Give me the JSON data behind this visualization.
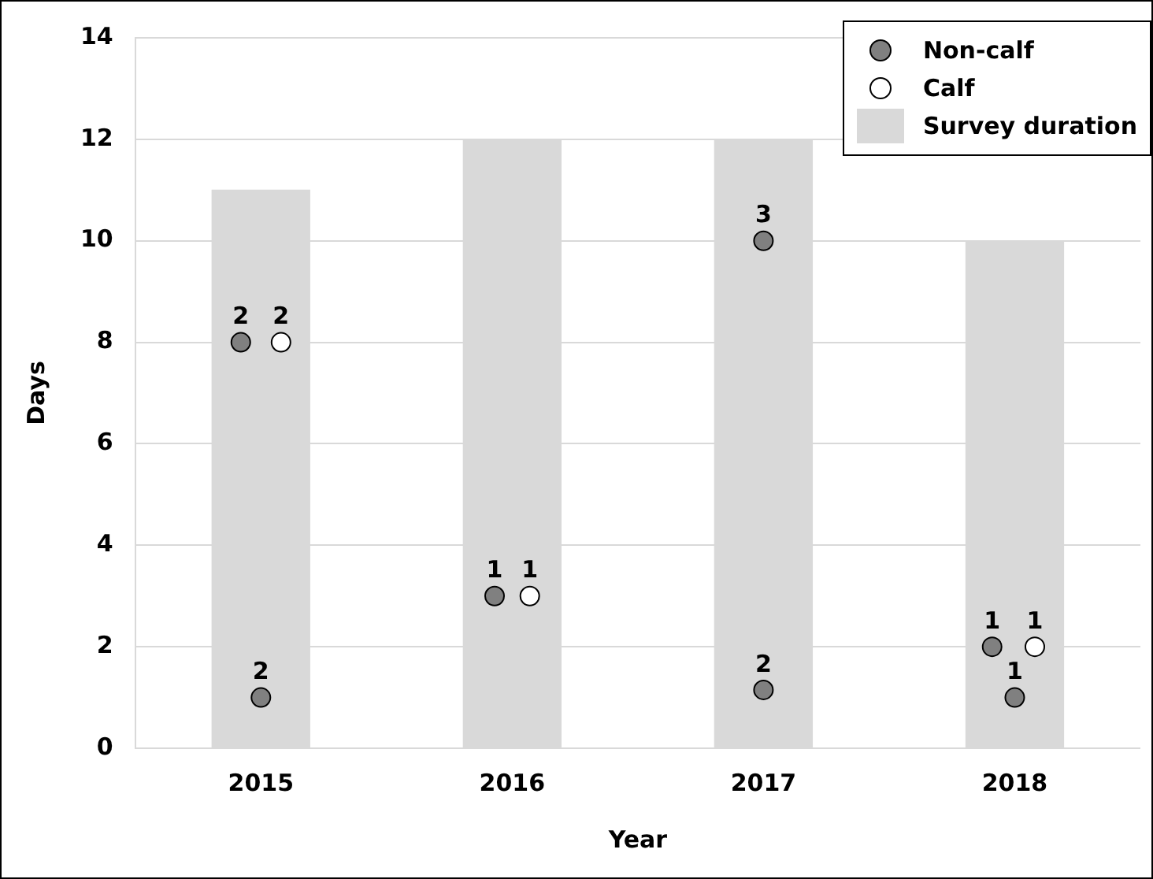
{
  "chart_data": {
    "type": "scatter",
    "xlabel": "Year",
    "ylabel": "Days",
    "xlim": [
      2014.5,
      2018.5
    ],
    "xticks": [
      2015,
      2016,
      2017,
      2018
    ],
    "ylim": [
      0,
      14
    ],
    "yticks": [
      0,
      2,
      4,
      6,
      8,
      10,
      12,
      14
    ],
    "grid": "y",
    "legend": "top right",
    "marker": "circle",
    "series": [
      {
        "name": "Non-calf",
        "color": "#808080",
        "x": [
          2014.92,
          2015,
          2015.93,
          2017,
          2017,
          2017.91,
          2018
        ],
        "values": [
          8,
          1,
          3,
          10,
          1.15,
          2,
          1
        ]
      },
      {
        "name": "Calf",
        "color": "#ffffff",
        "x": [
          2015.08,
          2016.07,
          2018.08
        ],
        "values": [
          8,
          3,
          2
        ]
      },
      {
        "name": "Survey duration",
        "type": "bar",
        "color": "#d9d9d9",
        "x": [
          2015,
          2016,
          2017,
          2018
        ],
        "values": [
          11,
          12,
          12,
          10
        ]
      }
    ],
    "annotations": [
      {
        "text": "2",
        "x": 2014.92,
        "y": 8
      },
      {
        "text": "2",
        "x": 2015,
        "y": 1
      },
      {
        "text": "1",
        "x": 2015.93,
        "y": 3
      },
      {
        "text": "3",
        "x": 2017,
        "y": 10
      },
      {
        "text": "2",
        "x": 2017,
        "y": 1.15
      },
      {
        "text": "1",
        "x": 2017.91,
        "y": 2
      },
      {
        "text": "1",
        "x": 2018,
        "y": 1
      },
      {
        "text": "2",
        "x": 2015.08,
        "y": 8
      },
      {
        "text": "1",
        "x": 2016.07,
        "y": 3
      },
      {
        "text": "1",
        "x": 2018.08,
        "y": 2
      }
    ]
  }
}
